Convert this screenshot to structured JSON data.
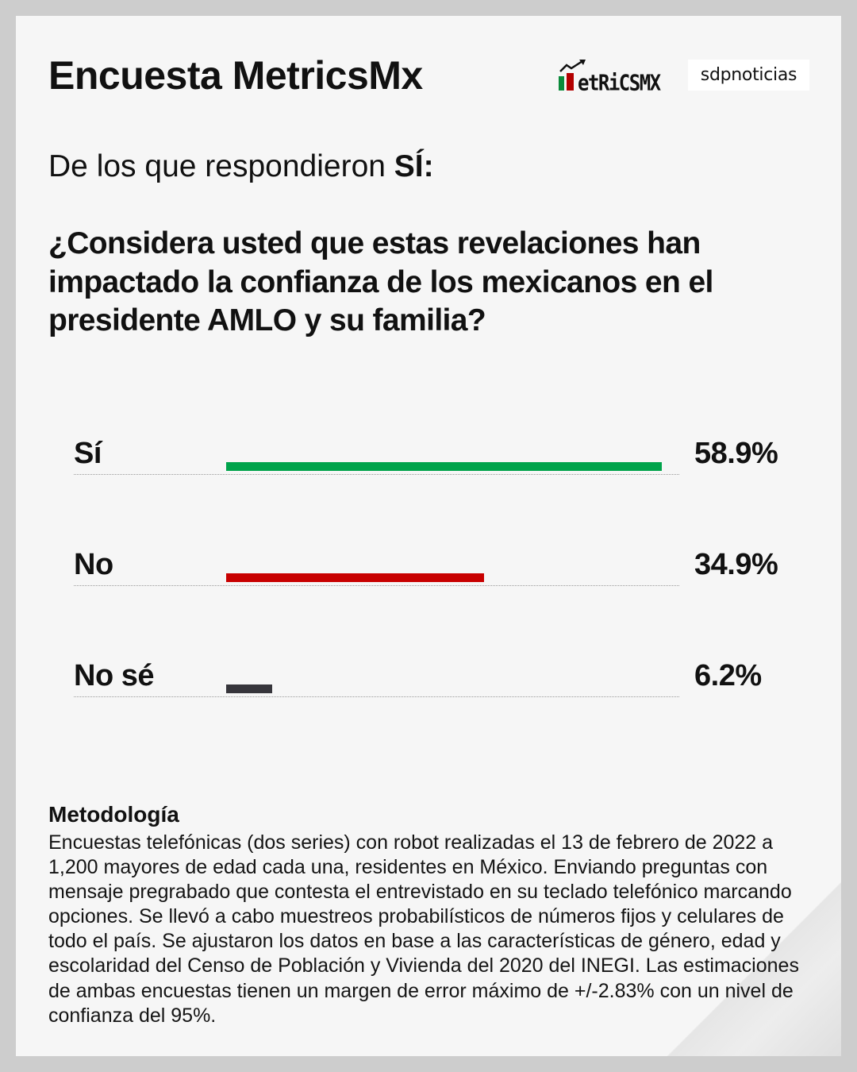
{
  "header": {
    "title": "Encuesta MetricsMx",
    "logos": {
      "metricsmx": {
        "text": "IetRiCSMX",
        "icon": "trend-arrow-icon",
        "flag_colors": [
          "#0a8a3a",
          "#ffffff",
          "#b30000"
        ]
      },
      "sdpnoticias": {
        "text": "sdpnoticias"
      }
    }
  },
  "subtitle": {
    "prefix": "De los que respondieron ",
    "emphasis": "SÍ:"
  },
  "question": "¿Considera usted que estas revelaciones han impactado la confianza de los mexicanos en el presidente AMLO y su familia?",
  "results": [
    {
      "label": "Sí",
      "value": 58.9,
      "display": "58.9%",
      "color": "#00a34b"
    },
    {
      "label": "No",
      "value": 34.9,
      "display": "34.9%",
      "color": "#c80000"
    },
    {
      "label": "No sé",
      "value": 6.2,
      "display": "6.2%",
      "color": "#36353b"
    }
  ],
  "methodology": {
    "title": "Metodología",
    "body": "Encuestas telefónicas (dos series) con robot realizadas el 13 de febrero de 2022 a 1,200 mayores de edad cada una, residentes en México. Enviando preguntas con mensaje pregrabado que contesta el entrevistado en su teclado telefónico marcando opciones. Se llevó a cabo muestreos probabilísticos de números fijos y celulares de todo el país. Se ajustaron los datos en base a las características de género, edad y escolaridad del Censo de Población y Vivienda del 2020 del INEGI. Las estimaciones de ambas encuestas tienen un margen de error máximo de +/-2.83% con un nivel de confianza del 95%."
  },
  "colors": {
    "background": "#cdcdcd",
    "card": "#f6f6f6",
    "yes": "#00a34b",
    "no": "#c80000",
    "unsure": "#36353b"
  },
  "chart_data": {
    "type": "bar",
    "orientation": "horizontal",
    "title": "¿Considera usted que estas revelaciones han impactado la confianza de los mexicanos en el presidente AMLO y su familia?",
    "subtitle": "De los que respondieron SÍ:",
    "categories": [
      "Sí",
      "No",
      "No sé"
    ],
    "values": [
      58.9,
      34.9,
      6.2
    ],
    "unit": "%",
    "colors": [
      "#00a34b",
      "#c80000",
      "#36353b"
    ],
    "xlabel": "",
    "ylabel": "",
    "xlim": [
      0,
      100
    ],
    "grid": false,
    "legend": "none",
    "data_labels": [
      "58.9%",
      "34.9%",
      "6.2%"
    ]
  }
}
